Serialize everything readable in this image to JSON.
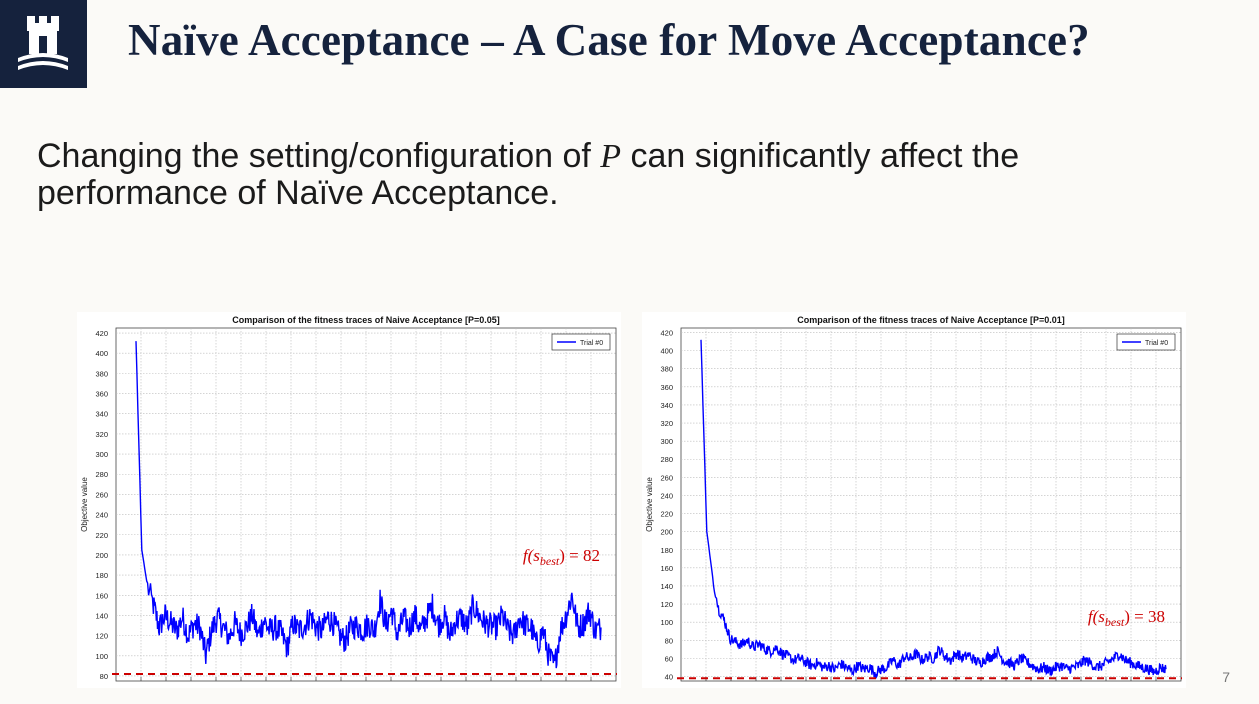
{
  "slide": {
    "title": "Naïve Acceptance – A Case for Move Acceptance?",
    "body_before": "Changing the setting/configuration of ",
    "body_var": "P",
    "body_after": " can significantly affect the performance of Naïve Acceptance.",
    "page_number": "7"
  },
  "colors": {
    "navy": "#15223d",
    "trace": "#0000ff",
    "best": "#cc0000"
  },
  "chart_data": [
    {
      "type": "line",
      "title": "Comparison of the fitness traces of Naive Acceptance [P=0.05]",
      "xlabel": "",
      "ylabel": "Objective value",
      "ylim": [
        75,
        425
      ],
      "yticks": [
        80,
        100,
        120,
        140,
        160,
        180,
        200,
        220,
        240,
        260,
        280,
        300,
        320,
        340,
        360,
        380,
        400,
        420
      ],
      "x_gridlines": 20,
      "grid": true,
      "legend": "top-right",
      "series": [
        {
          "name": "Trial #0",
          "color": "#0000ff",
          "values": [
            412,
            205,
            168,
            150,
            128,
            140,
            132,
            125,
            138,
            120,
            132,
            128,
            100,
            125,
            138,
            128,
            118,
            132,
            122,
            128,
            140,
            120,
            135,
            125,
            128,
            122,
            108,
            132,
            125,
            130,
            140,
            128,
            125,
            138,
            132,
            120,
            115,
            128,
            130,
            125,
            132,
            125,
            155,
            130,
            145,
            120,
            138,
            128,
            140,
            125,
            138,
            150,
            130,
            140,
            120,
            135,
            138,
            128,
            150,
            140,
            132,
            130,
            128,
            140,
            125,
            120,
            138,
            130,
            128,
            110,
            125,
            100,
            90,
            125,
            140,
            160,
            128,
            132,
            145,
            125,
            128
          ]
        }
      ],
      "best_line": {
        "value": 82,
        "label": "f(s_best) = 82"
      }
    },
    {
      "type": "line",
      "title": "Comparison of the fitness traces of Naive Acceptance [P=0.01]",
      "xlabel": "",
      "ylabel": "Objective value",
      "ylim": [
        35,
        425
      ],
      "yticks": [
        40,
        60,
        80,
        100,
        120,
        140,
        160,
        180,
        200,
        220,
        240,
        260,
        280,
        300,
        320,
        340,
        360,
        380,
        400,
        420
      ],
      "x_gridlines": 20,
      "grid": true,
      "legend": "top-right",
      "series": [
        {
          "name": "Trial #0",
          "color": "#0000ff",
          "values": [
            412,
            200,
            150,
            115,
            102,
            82,
            78,
            75,
            80,
            72,
            76,
            70,
            68,
            72,
            65,
            62,
            58,
            60,
            56,
            52,
            55,
            50,
            52,
            48,
            54,
            50,
            46,
            52,
            48,
            50,
            44,
            48,
            50,
            58,
            52,
            62,
            60,
            65,
            58,
            62,
            60,
            70,
            62,
            58,
            66,
            60,
            64,
            58,
            55,
            60,
            62,
            68,
            58,
            55,
            52,
            60,
            56,
            52,
            48,
            50,
            46,
            50,
            52,
            48,
            50,
            52,
            58,
            55,
            50,
            52,
            56,
            60,
            65,
            58,
            55,
            52,
            50,
            48,
            45,
            50,
            48
          ]
        }
      ],
      "best_line": {
        "value": 38,
        "label": "f(s_best) = 38"
      }
    }
  ]
}
